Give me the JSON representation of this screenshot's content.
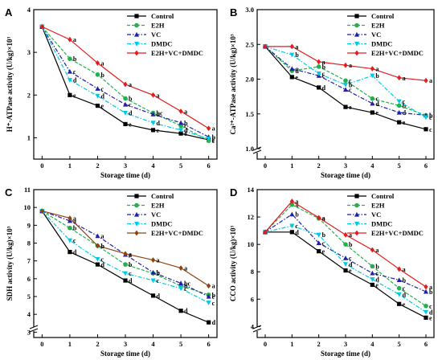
{
  "chart_data": [
    {
      "panel": "A",
      "type": "line",
      "xlabel": "Storage time (d)",
      "ylabel": "H⁺-ATPase activity (U/kg)×10³",
      "x": [
        0,
        1,
        2,
        3,
        4,
        5,
        6
      ],
      "xlim": [
        -0.3,
        6.3
      ],
      "ylim": [
        0.5,
        4
      ],
      "yticks": [
        1,
        2,
        3,
        4
      ],
      "ybreak": false,
      "legend_position": "top-right",
      "series": [
        {
          "name": "Control",
          "color": "#000000",
          "marker": "square",
          "dash": "solid",
          "values": [
            3.6,
            2.0,
            1.75,
            1.32,
            1.18,
            1.1,
            0.95
          ],
          "sig": [
            "",
            "e",
            "e",
            "e",
            "e",
            "e",
            "c"
          ]
        },
        {
          "name": "E2H",
          "color": "#22b14c",
          "marker": "circle",
          "dash": "dash",
          "values": [
            3.6,
            2.85,
            2.48,
            1.92,
            1.58,
            1.28,
            0.93
          ],
          "sig": [
            "",
            "b",
            "b",
            "b",
            "bc",
            "c",
            "c"
          ]
        },
        {
          "name": "VC",
          "color": "#1f1fa8",
          "marker": "triangle-up",
          "dash": "dashdot",
          "values": [
            3.6,
            2.55,
            2.15,
            1.78,
            1.55,
            1.35,
            1.02
          ],
          "sig": [
            "",
            "c",
            "c",
            "c",
            "b",
            "b",
            "b"
          ]
        },
        {
          "name": "DMDC",
          "color": "#00c8e6",
          "marker": "triangle-down",
          "dash": "dashdot",
          "values": [
            3.6,
            2.35,
            1.98,
            1.58,
            1.35,
            1.18,
            0.98
          ],
          "sig": [
            "",
            "d",
            "d",
            "d",
            "d",
            "d",
            "c"
          ]
        },
        {
          "name": "E2H+VC+DMDC",
          "color": "#e41a1c",
          "marker": "diamond",
          "dash": "solid",
          "values": [
            3.6,
            3.3,
            2.75,
            2.25,
            2.0,
            1.62,
            1.22
          ],
          "sig": [
            "",
            "a",
            "a",
            "a",
            "a",
            "a",
            "a"
          ]
        }
      ]
    },
    {
      "panel": "B",
      "type": "line",
      "xlabel": "Storage time (d)",
      "ylabel": "Ca²⁺-ATPase activity (U/kg)×10³",
      "x": [
        0,
        1,
        2,
        3,
        4,
        5,
        6
      ],
      "xlim": [
        -0.3,
        6.3
      ],
      "ylim": [
        0.85,
        3.0
      ],
      "yticks": [
        1.0,
        1.5,
        2.0,
        2.5,
        3.0
      ],
      "ybreak": true,
      "legend_position": "top-right",
      "series": [
        {
          "name": "Control",
          "color": "#000000",
          "marker": "square",
          "dash": "solid",
          "values": [
            2.47,
            2.03,
            1.88,
            1.6,
            1.52,
            1.38,
            1.28
          ],
          "sig": [
            "",
            "e",
            "d",
            "e",
            "e",
            "e",
            "c"
          ]
        },
        {
          "name": "E2H",
          "color": "#22b14c",
          "marker": "circle",
          "dash": "dash",
          "values": [
            2.47,
            2.12,
            2.18,
            1.98,
            1.72,
            1.62,
            1.48
          ],
          "sig": [
            "",
            "d",
            "b",
            "c",
            "c",
            "b",
            "b"
          ]
        },
        {
          "name": "VC",
          "color": "#1f1fa8",
          "marker": "triangle-up",
          "dash": "dashdot",
          "values": [
            2.47,
            2.15,
            2.05,
            1.85,
            1.65,
            1.52,
            1.48
          ],
          "sig": [
            "",
            "c",
            "c",
            "c",
            "d",
            "d",
            "b"
          ]
        },
        {
          "name": "DMDC",
          "color": "#00c8e6",
          "marker": "triangle-down",
          "dash": "dashdot",
          "values": [
            2.47,
            2.35,
            2.08,
            1.92,
            2.05,
            1.68,
            1.45
          ],
          "sig": [
            "",
            "b",
            "c",
            "b",
            "b",
            "c",
            "c"
          ]
        },
        {
          "name": "E2H+VC+DMDC",
          "color": "#e41a1c",
          "marker": "diamond",
          "dash": "solid",
          "values": [
            2.47,
            2.47,
            2.25,
            2.2,
            2.15,
            2.02,
            1.98
          ],
          "sig": [
            "",
            "a",
            "a",
            "a",
            "a",
            "a",
            "a"
          ]
        }
      ]
    },
    {
      "panel": "C",
      "type": "line",
      "xlabel": "Storage time (d)",
      "ylabel": "SDH activity (U/kg)×10³",
      "x": [
        0,
        1,
        2,
        3,
        4,
        5,
        6
      ],
      "xlim": [
        -0.3,
        6.3
      ],
      "ylim": [
        2.7,
        11
      ],
      "yticks": [
        3,
        4,
        5,
        6,
        7,
        8,
        9,
        10,
        11
      ],
      "ybreak": true,
      "legend_position": "top-right",
      "series": [
        {
          "name": "Control",
          "color": "#000000",
          "marker": "square",
          "dash": "solid",
          "values": [
            9.8,
            7.5,
            6.8,
            5.9,
            5.05,
            4.2,
            3.55
          ],
          "sig": [
            "",
            "d",
            "d",
            "d",
            "d",
            "d",
            "d"
          ]
        },
        {
          "name": "E2H",
          "color": "#22b14c",
          "marker": "circle",
          "dash": "dash",
          "values": [
            9.8,
            8.85,
            7.85,
            6.8,
            6.3,
            5.6,
            5.1
          ],
          "sig": [
            "",
            "b",
            "b",
            "b",
            "b",
            "b",
            "b"
          ]
        },
        {
          "name": "VC",
          "color": "#1f1fa8",
          "marker": "triangle-up",
          "dash": "dashdot",
          "values": [
            9.8,
            9.25,
            8.4,
            7.35,
            6.35,
            5.75,
            5.0
          ],
          "sig": [
            "",
            "a",
            "a",
            "a",
            "b",
            "bc",
            "c"
          ]
        },
        {
          "name": "DMDC",
          "color": "#00c8e6",
          "marker": "triangle-down",
          "dash": "dashdot",
          "values": [
            9.8,
            8.15,
            7.1,
            6.3,
            5.9,
            5.45,
            4.65
          ],
          "sig": [
            "",
            "c",
            "c",
            "c",
            "c",
            "c",
            "c"
          ]
        },
        {
          "name": "E2H+VC+DMDC",
          "color": "#8b4513",
          "marker": "diamond",
          "dash": "solid",
          "values": [
            9.8,
            9.4,
            7.85,
            7.4,
            7.05,
            6.6,
            5.6
          ],
          "sig": [
            "",
            "a",
            "b",
            "a",
            "a",
            "a",
            "a"
          ]
        }
      ]
    },
    {
      "panel": "D",
      "type": "line",
      "xlabel": "Storage time (d)",
      "ylabel": "CCO activity (U/kg)×10³",
      "x": [
        0,
        1,
        2,
        3,
        4,
        5,
        6
      ],
      "xlim": [
        -0.3,
        6.3
      ],
      "ylim": [
        3.2,
        14
      ],
      "yticks": [
        4,
        6,
        8,
        10,
        12,
        14
      ],
      "ybreak": true,
      "legend_position": "top-right",
      "series": [
        {
          "name": "Control",
          "color": "#000000",
          "marker": "square",
          "dash": "solid",
          "values": [
            10.9,
            10.9,
            9.5,
            8.1,
            7.05,
            5.65,
            4.65
          ],
          "sig": [
            "",
            "d",
            "e",
            "e",
            "e",
            "e",
            "e"
          ]
        },
        {
          "name": "E2H",
          "color": "#22b14c",
          "marker": "circle",
          "dash": "dash",
          "values": [
            10.9,
            12.9,
            11.9,
            10.0,
            8.4,
            6.8,
            5.5
          ],
          "sig": [
            "",
            "a",
            "a",
            "b",
            "b",
            "c",
            "c"
          ]
        },
        {
          "name": "VC",
          "color": "#1f1fa8",
          "marker": "triangle-up",
          "dash": "dashdot",
          "values": [
            10.9,
            12.2,
            10.1,
            9.0,
            7.9,
            7.4,
            6.55
          ],
          "sig": [
            "",
            "b",
            "c",
            "c",
            "c",
            "b",
            "b"
          ]
        },
        {
          "name": "DMDC",
          "color": "#00c8e6",
          "marker": "triangle-down",
          "dash": "dashdot",
          "values": [
            10.9,
            11.35,
            10.7,
            8.55,
            7.45,
            6.35,
            5.05
          ],
          "sig": [
            "",
            "c",
            "b",
            "d",
            "d",
            "d",
            "d"
          ]
        },
        {
          "name": "E2H+VC+DMDC",
          "color": "#e41a1c",
          "marker": "diamond",
          "dash": "solid",
          "values": [
            10.9,
            13.15,
            11.95,
            10.7,
            9.6,
            8.2,
            6.9
          ],
          "sig": [
            "",
            "a",
            "a",
            "a",
            "a",
            "a",
            "a"
          ]
        }
      ]
    }
  ]
}
